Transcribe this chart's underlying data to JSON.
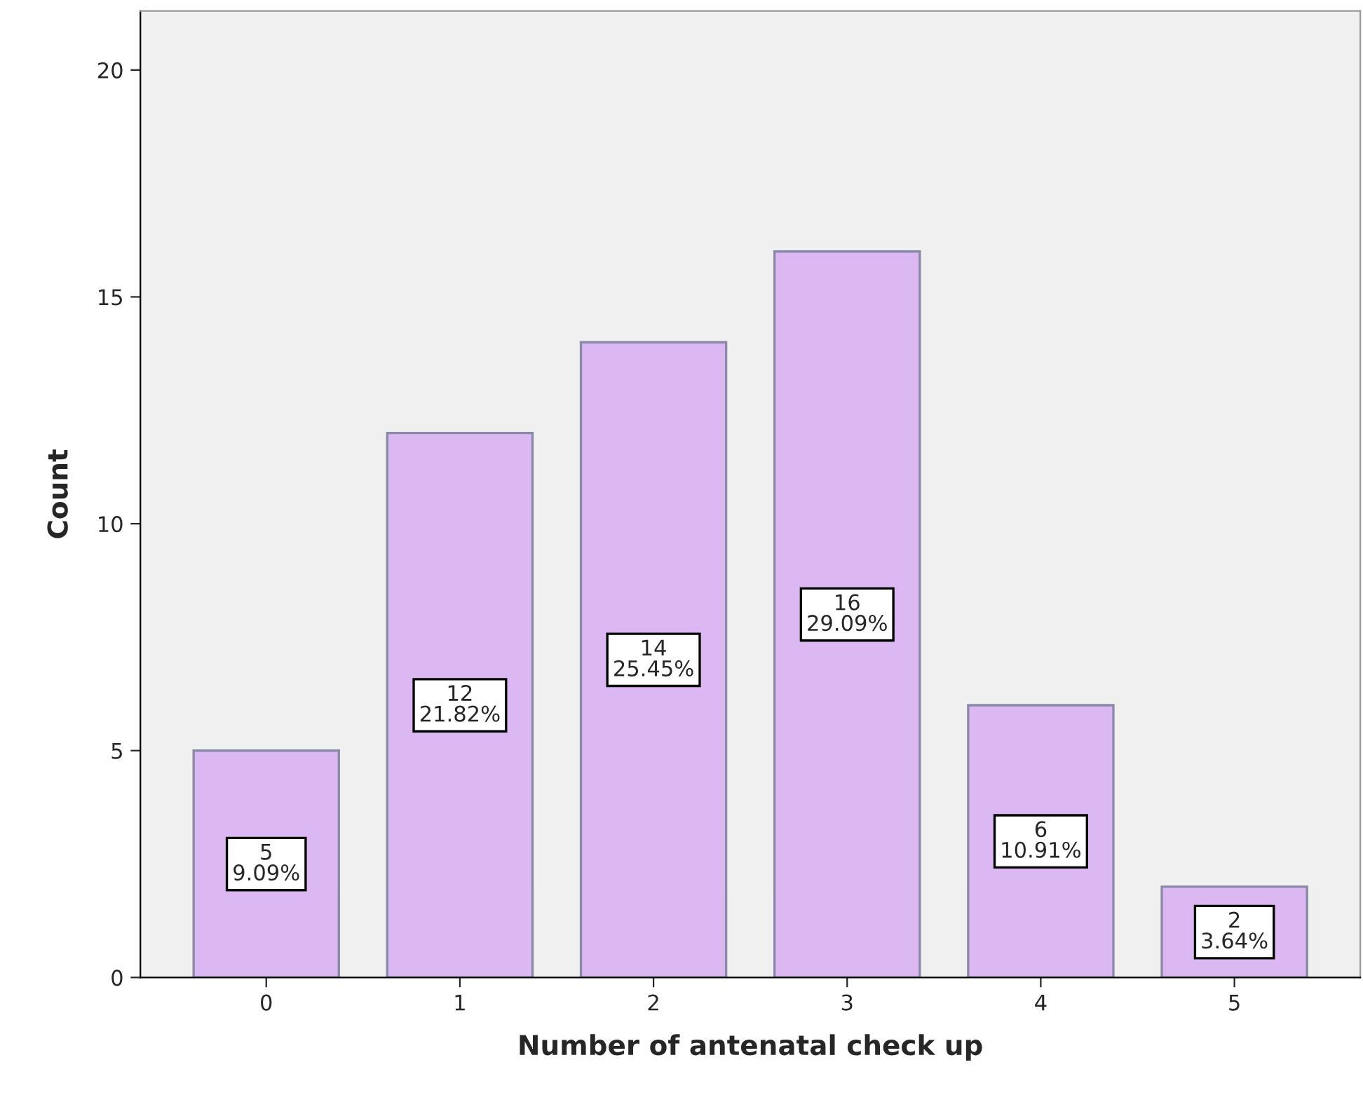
{
  "chart_data": {
    "type": "bar",
    "xlabel": "Number of antenatal check up",
    "ylabel": "Count",
    "categories": [
      "0",
      "1",
      "2",
      "3",
      "4",
      "5"
    ],
    "values": [
      5,
      12,
      14,
      16,
      6,
      2
    ],
    "value_labels": [
      "5\n9.09%",
      "12\n21.82%",
      "14\n25.45%",
      "16\n29.09%",
      "6\n10.91%",
      "2\n3.64%"
    ],
    "color": "#dcb8f2",
    "ylim": [
      0,
      21.3
    ],
    "yticks": [
      0,
      5,
      10,
      15,
      20
    ],
    "grid": false
  }
}
